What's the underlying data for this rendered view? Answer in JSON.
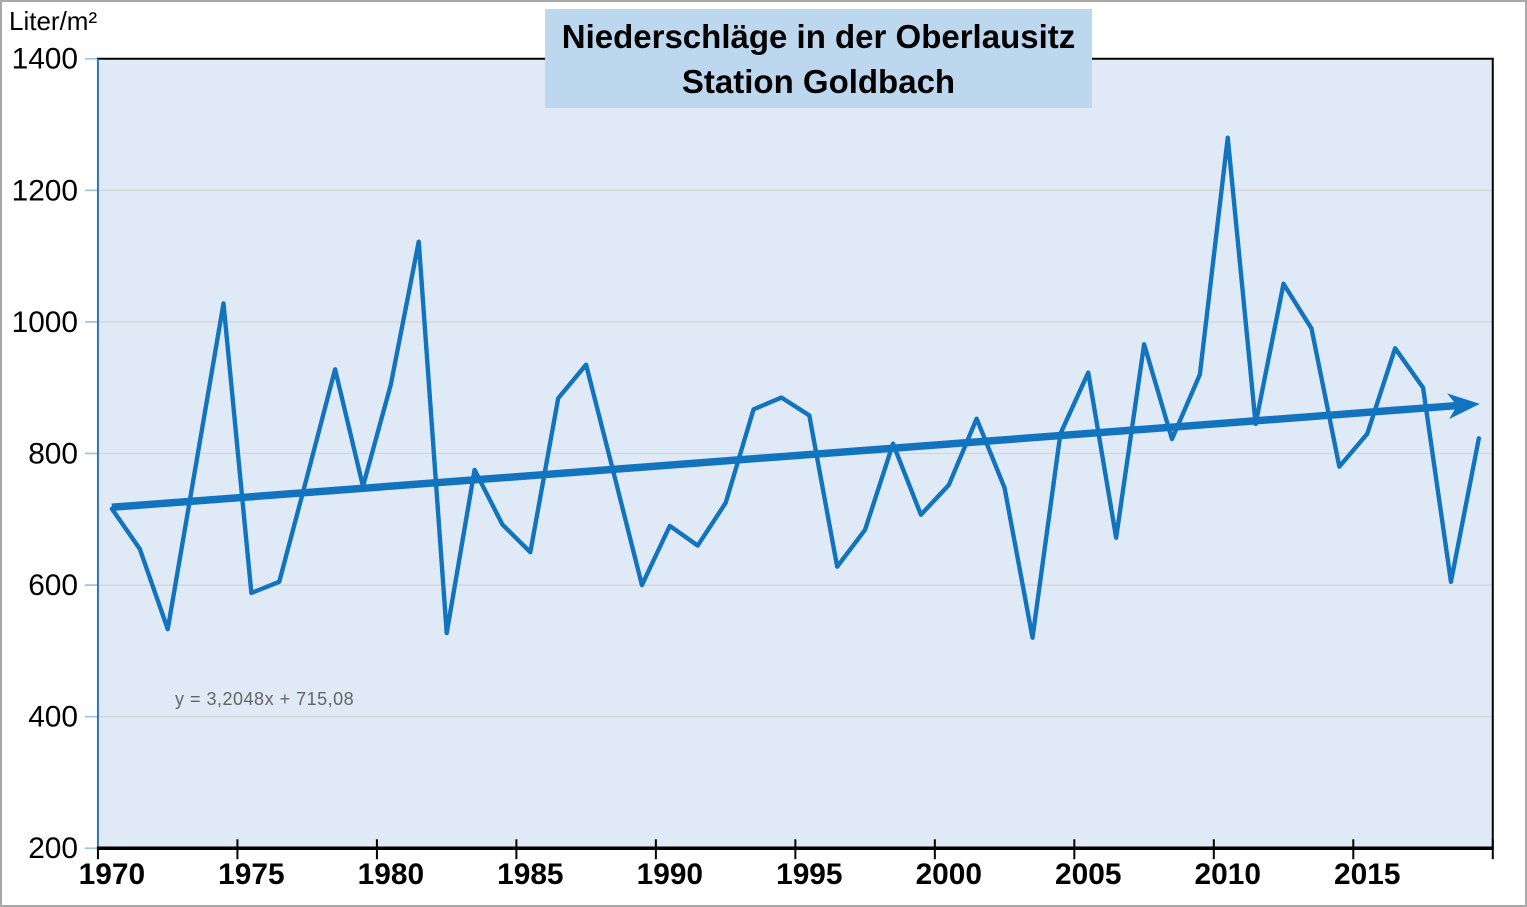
{
  "chart_data": {
    "type": "line",
    "title_lines": [
      "Niederschläge in der Oberlausitz",
      "Station Goldbach"
    ],
    "ylabel": "Liter/m²",
    "ylim": [
      200,
      1400
    ],
    "yticks": [
      200,
      400,
      600,
      800,
      1000,
      1200,
      1400
    ],
    "xticks": [
      1970,
      1975,
      1980,
      1985,
      1990,
      1995,
      2000,
      2005,
      2010,
      2015
    ],
    "grid": "horizontal",
    "legend": "none",
    "years": [
      1970,
      1971,
      1972,
      1973,
      1974,
      1975,
      1976,
      1977,
      1978,
      1979,
      1980,
      1981,
      1982,
      1983,
      1984,
      1985,
      1986,
      1987,
      1988,
      1989,
      1990,
      1991,
      1992,
      1993,
      1994,
      1995,
      1996,
      1997,
      1998,
      1999,
      2000,
      2001,
      2002,
      2003,
      2004,
      2005,
      2006,
      2007,
      2008,
      2009,
      2010,
      2011,
      2012,
      2013,
      2014,
      2015,
      2016,
      2017,
      2018,
      2019
    ],
    "values": [
      716,
      655,
      533,
      780,
      1028,
      588,
      605,
      765,
      928,
      750,
      905,
      1122,
      527,
      775,
      692,
      650,
      884,
      935,
      768,
      600,
      690,
      660,
      725,
      867,
      885,
      858,
      628,
      684,
      815,
      707,
      752,
      853,
      748,
      520,
      830,
      923,
      672,
      966,
      822,
      920,
      1280,
      845,
      1058,
      990,
      780,
      830,
      960,
      900,
      605,
      823
    ],
    "trendline": {
      "type": "linear",
      "slope": 3.2048,
      "intercept": 715.08,
      "equation": "y = 3,2048x + 715,08",
      "arrow_end": true
    },
    "colors": {
      "line": "#1273BE",
      "trend": "#1273BE",
      "plot_fill": "#DFEAF6",
      "title_fill": "#BDD7EE",
      "gridline": "#D6D6D6",
      "y_axis": "#2E75B6",
      "y_tick": "#9DC3E6",
      "axis_black": "#000000",
      "equation_text": "#646464",
      "outer_border": "#A8A8A8"
    }
  }
}
